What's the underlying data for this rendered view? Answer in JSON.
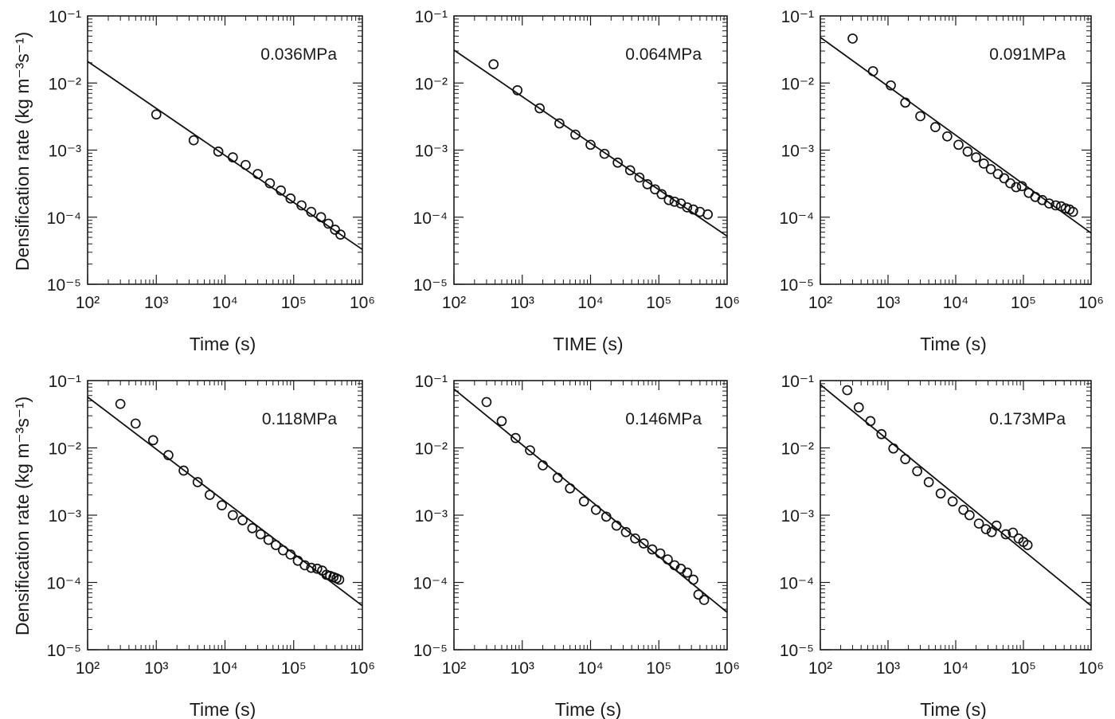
{
  "figure": {
    "ylabel": "Densification rate (kg m⁻³s⁻¹)"
  },
  "chart_data": [
    {
      "type": "scatter",
      "annotation": "0.036MPa",
      "xlabel": "Time (s)",
      "x_scale": "log",
      "y_scale": "log",
      "xlim": [
        100,
        1000000
      ],
      "ylim": [
        1e-05,
        0.1
      ],
      "x_ticks": [
        "10²",
        "10³",
        "10⁴",
        "10⁵",
        "10⁶"
      ],
      "y_ticks": [
        "10⁻⁵",
        "10⁻⁴",
        "10⁻³",
        "10⁻²",
        "10⁻¹"
      ],
      "points": {
        "x": [
          1000,
          3500,
          8000,
          13000,
          20000,
          30000,
          45000,
          65000,
          90000,
          130000,
          180000,
          250000,
          320000,
          400000,
          480000
        ],
        "y": [
          0.0034,
          0.0014,
          0.00095,
          0.00078,
          0.0006,
          0.00044,
          0.00032,
          0.00025,
          0.00019,
          0.00015,
          0.00012,
          0.0001,
          8e-05,
          6.5e-05,
          5.5e-05
        ]
      },
      "fit_line": {
        "x": [
          100,
          1000000
        ],
        "y": [
          0.021,
          3.3e-05
        ]
      }
    },
    {
      "type": "scatter",
      "annotation": "0.064MPa",
      "xlabel": "TIME (s)",
      "x_scale": "log",
      "y_scale": "log",
      "xlim": [
        100,
        1000000
      ],
      "ylim": [
        1e-05,
        0.1
      ],
      "x_ticks": [
        "10²",
        "10³",
        "10⁴",
        "10⁵",
        "10⁶"
      ],
      "y_ticks": [
        "10⁻⁵",
        "10⁻⁴",
        "10⁻³",
        "10⁻²",
        "10⁻¹"
      ],
      "points": {
        "x": [
          380,
          850,
          1800,
          3500,
          6000,
          10000,
          16000,
          25000,
          38000,
          52000,
          68000,
          88000,
          110000,
          140000,
          170000,
          210000,
          260000,
          320000,
          400000,
          520000
        ],
        "y": [
          0.019,
          0.0078,
          0.0042,
          0.0025,
          0.0017,
          0.0012,
          0.00088,
          0.00065,
          0.0005,
          0.00039,
          0.00031,
          0.00026,
          0.00022,
          0.00018,
          0.00017,
          0.00016,
          0.00014,
          0.00013,
          0.00012,
          0.00011
        ]
      },
      "fit_line": {
        "x": [
          100,
          1000000
        ],
        "y": [
          0.031,
          5.2e-05
        ]
      }
    },
    {
      "type": "scatter",
      "annotation": "0.091MPa",
      "xlabel": "Time (s)",
      "x_scale": "log",
      "y_scale": "log",
      "xlim": [
        100,
        1000000
      ],
      "ylim": [
        1e-05,
        0.1
      ],
      "x_ticks": [
        "10²",
        "10³",
        "10⁴",
        "10⁵",
        "10⁶"
      ],
      "y_ticks": [
        "10⁻⁵",
        "10⁻⁴",
        "10⁻³",
        "10⁻²",
        "10⁻¹"
      ],
      "points": {
        "x": [
          300,
          600,
          1100,
          1800,
          3000,
          5000,
          7500,
          11000,
          15000,
          20000,
          26000,
          33000,
          42000,
          52000,
          64000,
          78000,
          95000,
          120000,
          150000,
          190000,
          240000,
          300000,
          360000,
          420000,
          480000,
          540000
        ],
        "y": [
          0.046,
          0.015,
          0.0092,
          0.0051,
          0.0032,
          0.0022,
          0.0016,
          0.0012,
          0.00095,
          0.00078,
          0.00063,
          0.00052,
          0.00044,
          0.00038,
          0.00032,
          0.00028,
          0.00029,
          0.00023,
          0.0002,
          0.00018,
          0.00016,
          0.00015,
          0.000145,
          0.000135,
          0.00013,
          0.00012
        ]
      },
      "fit_line": {
        "x": [
          100,
          1000000
        ],
        "y": [
          0.048,
          5.8e-05
        ]
      }
    },
    {
      "type": "scatter",
      "annotation": "0.118MPa",
      "xlabel": "Time (s)",
      "x_scale": "log",
      "y_scale": "log",
      "xlim": [
        100,
        1000000
      ],
      "ylim": [
        1e-05,
        0.1
      ],
      "x_ticks": [
        "10²",
        "10³",
        "10⁴",
        "10⁵",
        "10⁶"
      ],
      "y_ticks": [
        "10⁻⁵",
        "10⁻⁴",
        "10⁻³",
        "10⁻²",
        "10⁻¹"
      ],
      "points": {
        "x": [
          300,
          500,
          900,
          1500,
          2500,
          4000,
          6000,
          9000,
          13000,
          18000,
          25000,
          33000,
          43000,
          55000,
          70000,
          90000,
          115000,
          145000,
          180000,
          220000,
          260000,
          300000,
          340000,
          380000,
          420000,
          460000
        ],
        "y": [
          0.045,
          0.023,
          0.013,
          0.0078,
          0.0046,
          0.0031,
          0.002,
          0.0014,
          0.001,
          0.00084,
          0.00064,
          0.00052,
          0.00043,
          0.00036,
          0.0003,
          0.00026,
          0.00021,
          0.00018,
          0.000165,
          0.00016,
          0.00015,
          0.00013,
          0.000125,
          0.00012,
          0.000115,
          0.00011
        ]
      },
      "fit_line": {
        "x": [
          100,
          1000000
        ],
        "y": [
          0.057,
          4.5e-05
        ]
      }
    },
    {
      "type": "scatter",
      "annotation": "0.146MPa",
      "xlabel": "Time (s)",
      "x_scale": "log",
      "y_scale": "log",
      "xlim": [
        100,
        1000000
      ],
      "ylim": [
        1e-05,
        0.1
      ],
      "x_ticks": [
        "10²",
        "10³",
        "10⁴",
        "10⁵",
        "10⁶"
      ],
      "y_ticks": [
        "10⁻⁵",
        "10⁻⁴",
        "10⁻³",
        "10⁻²",
        "10⁻¹"
      ],
      "points": {
        "x": [
          300,
          500,
          800,
          1300,
          2000,
          3300,
          5000,
          8000,
          12000,
          17000,
          24000,
          33000,
          45000,
          60000,
          80000,
          105000,
          135000,
          170000,
          210000,
          260000,
          320000,
          380000,
          460000
        ],
        "y": [
          0.048,
          0.025,
          0.014,
          0.0092,
          0.0055,
          0.0036,
          0.0025,
          0.0016,
          0.0012,
          0.00095,
          0.0007,
          0.00056,
          0.00045,
          0.00038,
          0.00031,
          0.00027,
          0.00022,
          0.00018,
          0.00016,
          0.00014,
          0.00011,
          6.6e-05,
          5.5e-05
        ]
      },
      "fit_line": {
        "x": [
          100,
          1000000
        ],
        "y": [
          0.075,
          3.6e-05
        ]
      }
    },
    {
      "type": "scatter",
      "annotation": "0.173MPa",
      "xlabel": "Time (s)",
      "x_scale": "log",
      "y_scale": "log",
      "xlim": [
        100,
        1000000
      ],
      "ylim": [
        1e-05,
        0.1
      ],
      "x_ticks": [
        "10²",
        "10³",
        "10⁴",
        "10⁵",
        "10⁶"
      ],
      "y_ticks": [
        "10⁻⁵",
        "10⁻⁴",
        "10⁻³",
        "10⁻²",
        "10⁻¹"
      ],
      "points": {
        "x": [
          250,
          370,
          550,
          800,
          1200,
          1800,
          2700,
          4000,
          6000,
          9000,
          13000,
          16000,
          22000,
          28000,
          34000,
          40000,
          55000,
          70000,
          85000,
          100000,
          115000
        ],
        "y": [
          0.072,
          0.04,
          0.025,
          0.016,
          0.0098,
          0.0068,
          0.0045,
          0.0031,
          0.0021,
          0.0016,
          0.0012,
          0.001,
          0.00075,
          0.00062,
          0.00056,
          0.0007,
          0.00052,
          0.00055,
          0.00045,
          0.0004,
          0.00036
        ]
      },
      "fit_line": {
        "x": [
          100,
          1000000
        ],
        "y": [
          0.087,
          4.5e-05
        ]
      }
    }
  ]
}
